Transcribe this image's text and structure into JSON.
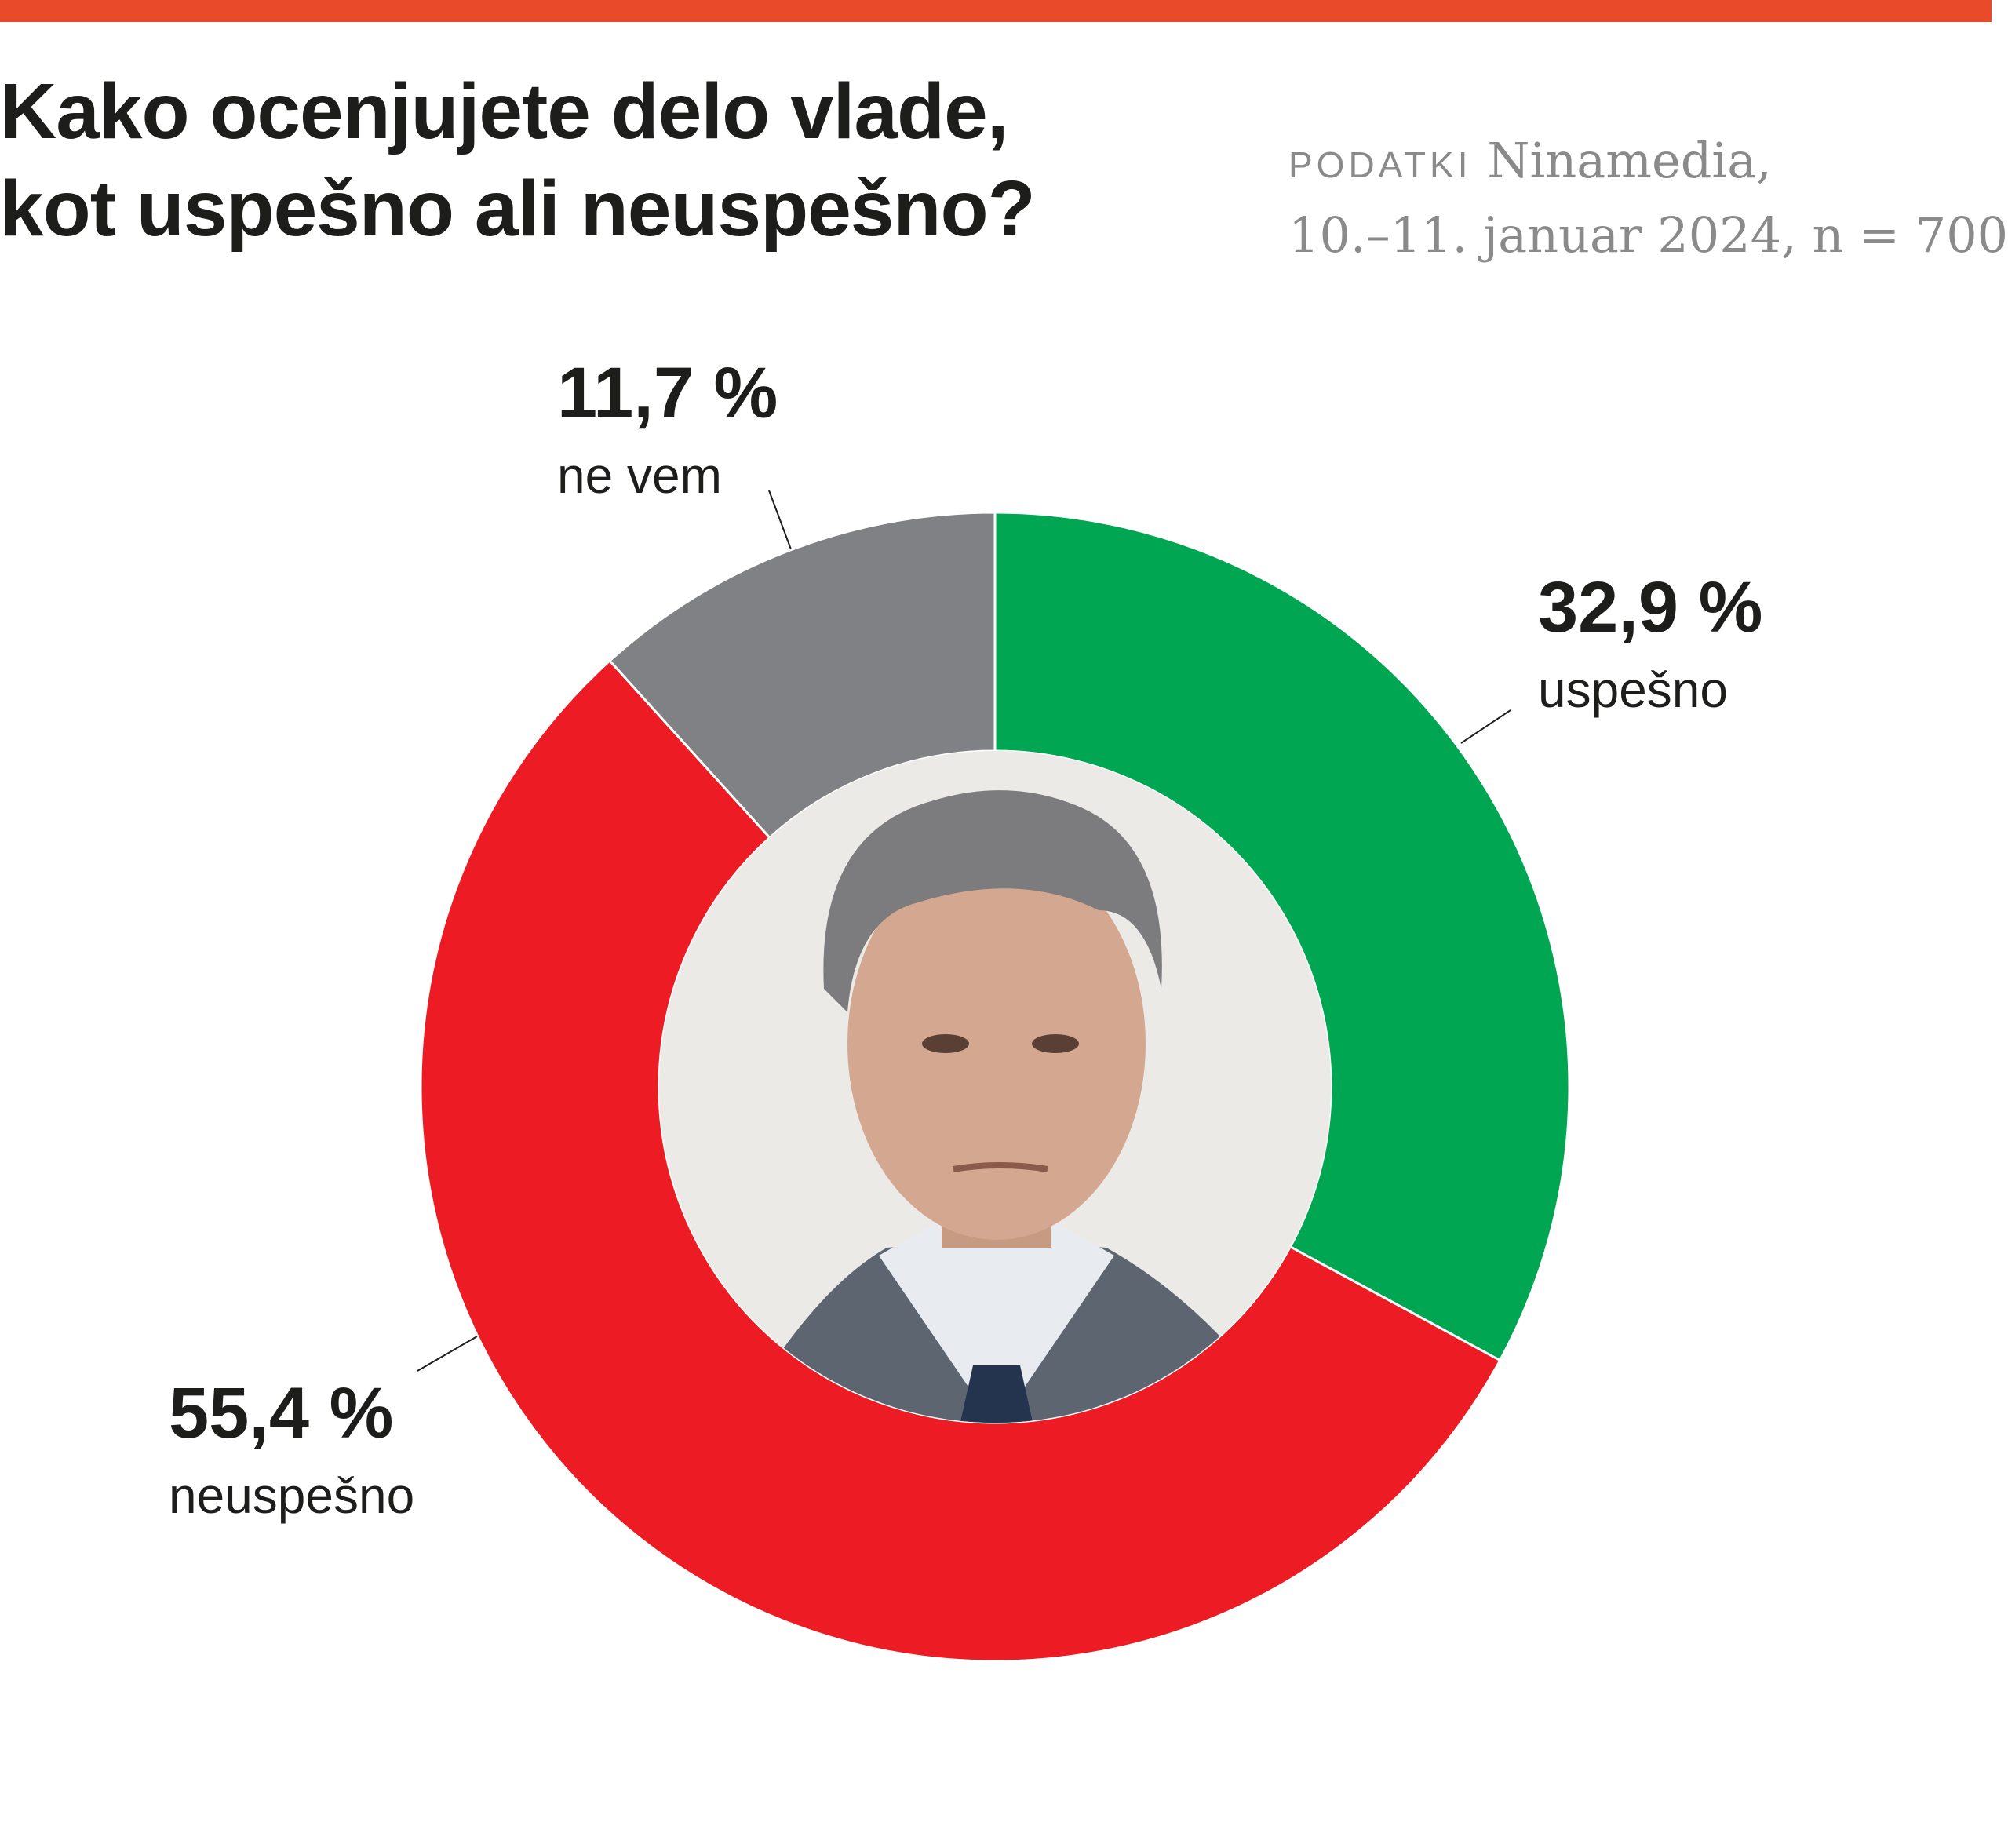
{
  "header": {
    "title_line1": "Kako ocenjujete delo vlade,",
    "title_line2": "kot uspešno ali neuspešno?",
    "accent_color": "#e94b2a"
  },
  "source": {
    "label": "PODATKI",
    "name": "Ninamedia,",
    "details": "10.–11. januar 2024, n = 700"
  },
  "chart_data": {
    "type": "pie",
    "title": "Kako ocenjujete delo vlade, kot uspešno ali neuspešno?",
    "style": "donut",
    "slices": [
      {
        "label": "uspešno",
        "value": 32.9,
        "display": "32,9 %",
        "color": "#00a651"
      },
      {
        "label": "neuspešno",
        "value": 55.4,
        "display": "55,4 %",
        "color": "#ed1c24"
      },
      {
        "label": "ne vem",
        "value": 11.7,
        "display": "11,7 %",
        "color": "#808184"
      }
    ],
    "center_image": "portrait-photo"
  }
}
